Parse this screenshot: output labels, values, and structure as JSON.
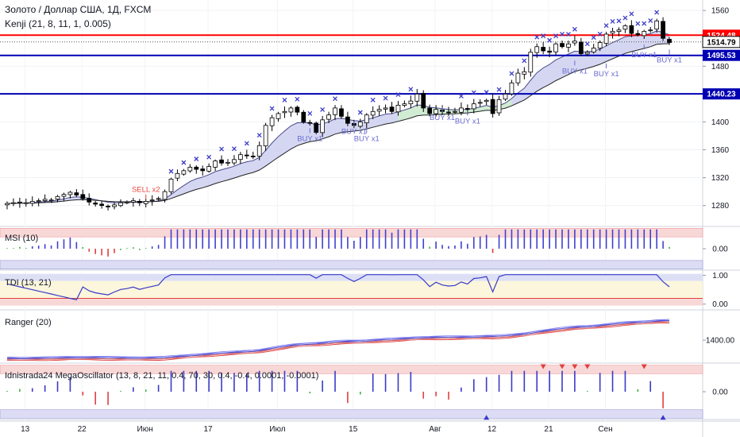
{
  "header": {
    "symbol_title": "Золото / Доллар США, 1Д, FXCM",
    "indicator_title": "Kenji (21, 8, 11, 1, 0.005)"
  },
  "colors": {
    "up_candle": "#ffffff",
    "down_candle": "#000000",
    "band_fill": "#c7c9ee",
    "band_fill_green": "#cfeecf",
    "x_marker": "#3c3cc9",
    "sell_label": "#e8473f",
    "buy_label": "#6a6ad0",
    "resistance_line": "#ff0000",
    "support_line": "#0000b3",
    "current_price": "#000000"
  },
  "chart_data": [
    {
      "type": "candlestick",
      "name": "Kenji (21, 8, 11, 1, 0.005)",
      "xlabels": [
        "13",
        "22",
        "Июн",
        "17",
        "Июл",
        "15",
        "Авг",
        "12",
        "21",
        "Сен"
      ],
      "ylim": [
        1250,
        1575
      ],
      "yticks": [
        1280,
        1320,
        1360,
        1400,
        1440,
        1480,
        1520,
        1560
      ],
      "price_tags": [
        {
          "value": 1524.48,
          "label": "1524.48",
          "color": "#ff0000"
        },
        {
          "value": 1514.79,
          "label": "1514.79",
          "color": "#000000"
        },
        {
          "value": 1495.53,
          "label": "1495.53",
          "color": "#0000b3"
        },
        {
          "value": 1440.23,
          "label": "1440.23",
          "color": "#0000b3"
        }
      ],
      "horizontal_lines": [
        {
          "value": 1524.48,
          "color": "#ff0000"
        },
        {
          "value": 1495.53,
          "color": "#0000b3"
        },
        {
          "value": 1440.23,
          "color": "#0000b3"
        }
      ],
      "close": [
        1283,
        1284,
        1285,
        1284,
        1286,
        1287,
        1289,
        1288,
        1293,
        1296,
        1299,
        1295,
        1290,
        1285,
        1282,
        1280,
        1278,
        1281,
        1284,
        1285,
        1287,
        1284,
        1286,
        1288,
        1290,
        1300,
        1318,
        1326,
        1330,
        1335,
        1332,
        1330,
        1336,
        1344,
        1341,
        1342,
        1346,
        1353,
        1352,
        1350,
        1366,
        1395,
        1406,
        1412,
        1415,
        1420,
        1414,
        1400,
        1398,
        1385,
        1403,
        1410,
        1420,
        1408,
        1398,
        1395,
        1400,
        1410,
        1415,
        1418,
        1420,
        1415,
        1424,
        1426,
        1430,
        1440,
        1420,
        1412,
        1418,
        1415,
        1414,
        1415,
        1420,
        1418,
        1426,
        1428,
        1431,
        1412,
        1432,
        1440,
        1456,
        1470,
        1472,
        1500,
        1508,
        1502,
        1500,
        1512,
        1508,
        1512,
        1516,
        1498,
        1500,
        1506,
        1514,
        1526,
        1530,
        1532,
        1538,
        1527,
        1525,
        1530,
        1532,
        1545,
        1520,
        1514
      ],
      "signals": [
        {
          "label": "SELL x2",
          "index": 22,
          "price": 1280
        },
        {
          "label": "BUY x1",
          "index": 48,
          "price": 1375
        },
        {
          "label": "BUY x1",
          "index": 55,
          "price": 1385
        },
        {
          "label": "BUY x1",
          "index": 57,
          "price": 1375
        },
        {
          "label": "BUY x1",
          "index": 69,
          "price": 1405
        },
        {
          "label": "BUY x1",
          "index": 73,
          "price": 1400
        },
        {
          "label": "BUY x1",
          "index": 90,
          "price": 1472
        },
        {
          "label": "BUY x1",
          "index": 95,
          "price": 1468
        },
        {
          "label": "BUY x1",
          "index": 101,
          "price": 1495
        },
        {
          "label": "BUY x1",
          "index": 105,
          "price": 1488
        }
      ]
    },
    {
      "type": "bar",
      "name": "MSI (10)",
      "ylim": [
        -1,
        1
      ],
      "yticks": [
        0
      ],
      "ytick_labels": [
        "0.00"
      ]
    },
    {
      "type": "line",
      "name": "TDI (13, 21)",
      "ylim": [
        -0.2,
        1.15
      ],
      "yticks": [
        0,
        1
      ],
      "ytick_labels": [
        "0.00",
        "1.00"
      ]
    },
    {
      "type": "line",
      "name": "Ranger (20)",
      "ylim": [
        1260,
        1580
      ],
      "yticks": [
        1400
      ],
      "ytick_labels": [
        "1400.00"
      ]
    },
    {
      "type": "bar",
      "name": "Idnistrada24 MegaOscillator (13, 8, 21, 11, 0.4, 70, 30, 0.4, -0.4, 0.0001, -0.0001)",
      "ylim": [
        -1,
        1
      ],
      "yticks": [
        0
      ],
      "ytick_labels": [
        "0.00"
      ]
    }
  ]
}
